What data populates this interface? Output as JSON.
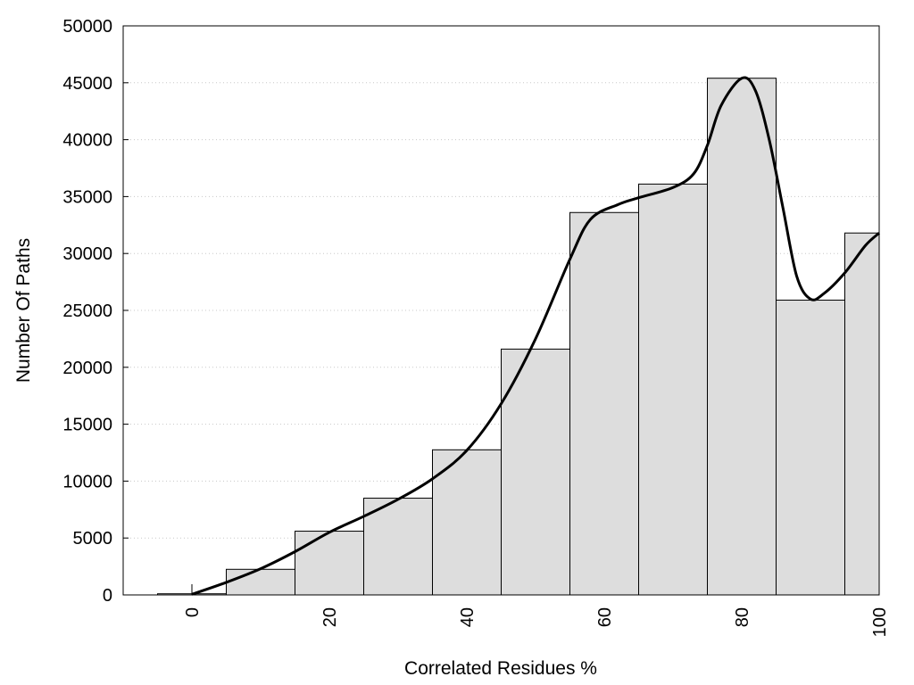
{
  "chart_data": {
    "type": "bar",
    "title": "",
    "xlabel": "Correlated Residues %",
    "ylabel": "Number Of Paths",
    "xlim": [
      -10,
      100
    ],
    "ylim": [
      0,
      50000
    ],
    "bin_width": 10,
    "grid": {
      "y": true,
      "x": false
    },
    "bars": [
      {
        "x": 0,
        "value": 100
      },
      {
        "x": 10,
        "value": 2250
      },
      {
        "x": 20,
        "value": 5600
      },
      {
        "x": 30,
        "value": 8500
      },
      {
        "x": 40,
        "value": 12750
      },
      {
        "x": 50,
        "value": 21600
      },
      {
        "x": 60,
        "value": 33600
      },
      {
        "x": 70,
        "value": 36100
      },
      {
        "x": 80,
        "value": 45400
      },
      {
        "x": 90,
        "value": 25900
      },
      {
        "x": 100,
        "value": 31800
      }
    ],
    "curve": [
      [
        0,
        50
      ],
      [
        5,
        1100
      ],
      [
        10,
        2300
      ],
      [
        15,
        3800
      ],
      [
        20,
        5500
      ],
      [
        25,
        6900
      ],
      [
        30,
        8400
      ],
      [
        35,
        10200
      ],
      [
        40,
        12700
      ],
      [
        45,
        16800
      ],
      [
        50,
        22500
      ],
      [
        55,
        29500
      ],
      [
        58,
        33000
      ],
      [
        62,
        34300
      ],
      [
        65,
        34900
      ],
      [
        70,
        35800
      ],
      [
        73,
        37000
      ],
      [
        75,
        39500
      ],
      [
        77,
        43000
      ],
      [
        80,
        45400
      ],
      [
        82,
        44300
      ],
      [
        84,
        40000
      ],
      [
        86,
        34000
      ],
      [
        88,
        28000
      ],
      [
        90,
        26000
      ],
      [
        92,
        26500
      ],
      [
        95,
        28300
      ],
      [
        98,
        30700
      ],
      [
        100,
        31800
      ]
    ],
    "yticks": [
      0,
      5000,
      10000,
      15000,
      20000,
      25000,
      30000,
      35000,
      40000,
      45000,
      50000
    ],
    "xticks": [
      0,
      20,
      40,
      60,
      80,
      100
    ],
    "colors": {
      "bar_fill": "#dddddd",
      "bar_stroke": "#000000",
      "curve": "#000000",
      "grid": "#c8c8c8"
    }
  }
}
